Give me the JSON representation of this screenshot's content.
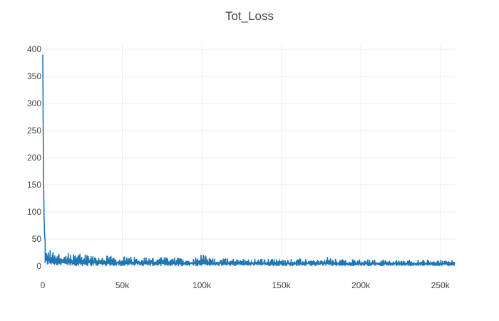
{
  "chart_data": {
    "type": "line",
    "title": "Tot_Loss",
    "xlabel": "",
    "ylabel": "",
    "xlim": [
      0,
      260000
    ],
    "ylim": [
      0,
      400
    ],
    "grid": true,
    "legend": "none",
    "x_ticks": [
      {
        "value": 0,
        "label": "0"
      },
      {
        "value": 50000,
        "label": "50k"
      },
      {
        "value": 100000,
        "label": "100k"
      },
      {
        "value": 150000,
        "label": "150k"
      },
      {
        "value": 200000,
        "label": "200k"
      },
      {
        "value": 250000,
        "label": "250k"
      }
    ],
    "y_ticks": [
      {
        "value": 0,
        "label": "0"
      },
      {
        "value": 50,
        "label": "50"
      },
      {
        "value": 100,
        "label": "100"
      },
      {
        "value": 150,
        "label": "150"
      },
      {
        "value": 200,
        "label": "200"
      },
      {
        "value": 250,
        "label": "250"
      },
      {
        "value": 300,
        "label": "300"
      },
      {
        "value": 350,
        "label": "350"
      },
      {
        "value": 400,
        "label": "400"
      }
    ],
    "series": [
      {
        "color": "#1f77b4",
        "x": [
          0,
          200,
          400,
          700,
          1000,
          1500,
          2000,
          3000,
          4000,
          5000,
          6000,
          7000,
          8000,
          9000,
          10000,
          12000,
          14000,
          16000,
          18000,
          20000,
          22000,
          25000,
          28000,
          30000,
          33000,
          36000,
          40000,
          44000,
          48000,
          52000,
          56000,
          60000,
          65000,
          70000,
          75000,
          80000,
          85000,
          90000,
          95000,
          100000,
          105000,
          110000,
          115000,
          120000,
          125000,
          130000,
          135000,
          140000,
          145000,
          150000,
          155000,
          160000,
          165000,
          170000,
          175000,
          180000,
          185000,
          190000,
          195000,
          200000,
          205000,
          210000,
          215000,
          220000,
          225000,
          230000,
          235000,
          240000,
          245000,
          250000,
          255000,
          259000
        ],
        "y_high": [
          390,
          300,
          130,
          80,
          40,
          38,
          35,
          33,
          32,
          32,
          30,
          29,
          28,
          27,
          26,
          25,
          24,
          23,
          22,
          22,
          21,
          25,
          21,
          20,
          20,
          19,
          19,
          18,
          18,
          18,
          17,
          17,
          17,
          16,
          16,
          16,
          15,
          15,
          15,
          23,
          15,
          14,
          14,
          14,
          14,
          14,
          13,
          13,
          13,
          13,
          13,
          13,
          13,
          12,
          12,
          17,
          12,
          12,
          12,
          12,
          12,
          12,
          12,
          11,
          11,
          11,
          11,
          11,
          11,
          11,
          11,
          11
        ],
        "y_low": [
          0,
          5,
          6,
          4,
          3,
          3,
          2,
          2,
          2,
          2,
          2,
          2,
          2,
          1,
          1,
          1,
          1,
          1,
          1,
          1,
          1,
          1,
          1,
          1,
          1,
          1,
          1,
          1,
          1,
          1,
          1,
          1,
          1,
          1,
          1,
          1,
          1,
          1,
          1,
          1,
          1,
          1,
          1,
          1,
          1,
          1,
          1,
          1,
          1,
          1,
          1,
          1,
          1,
          1,
          1,
          1,
          1,
          1,
          1,
          1,
          1,
          1,
          1,
          1,
          1,
          1,
          1,
          1,
          1,
          1,
          1,
          1
        ]
      }
    ]
  }
}
